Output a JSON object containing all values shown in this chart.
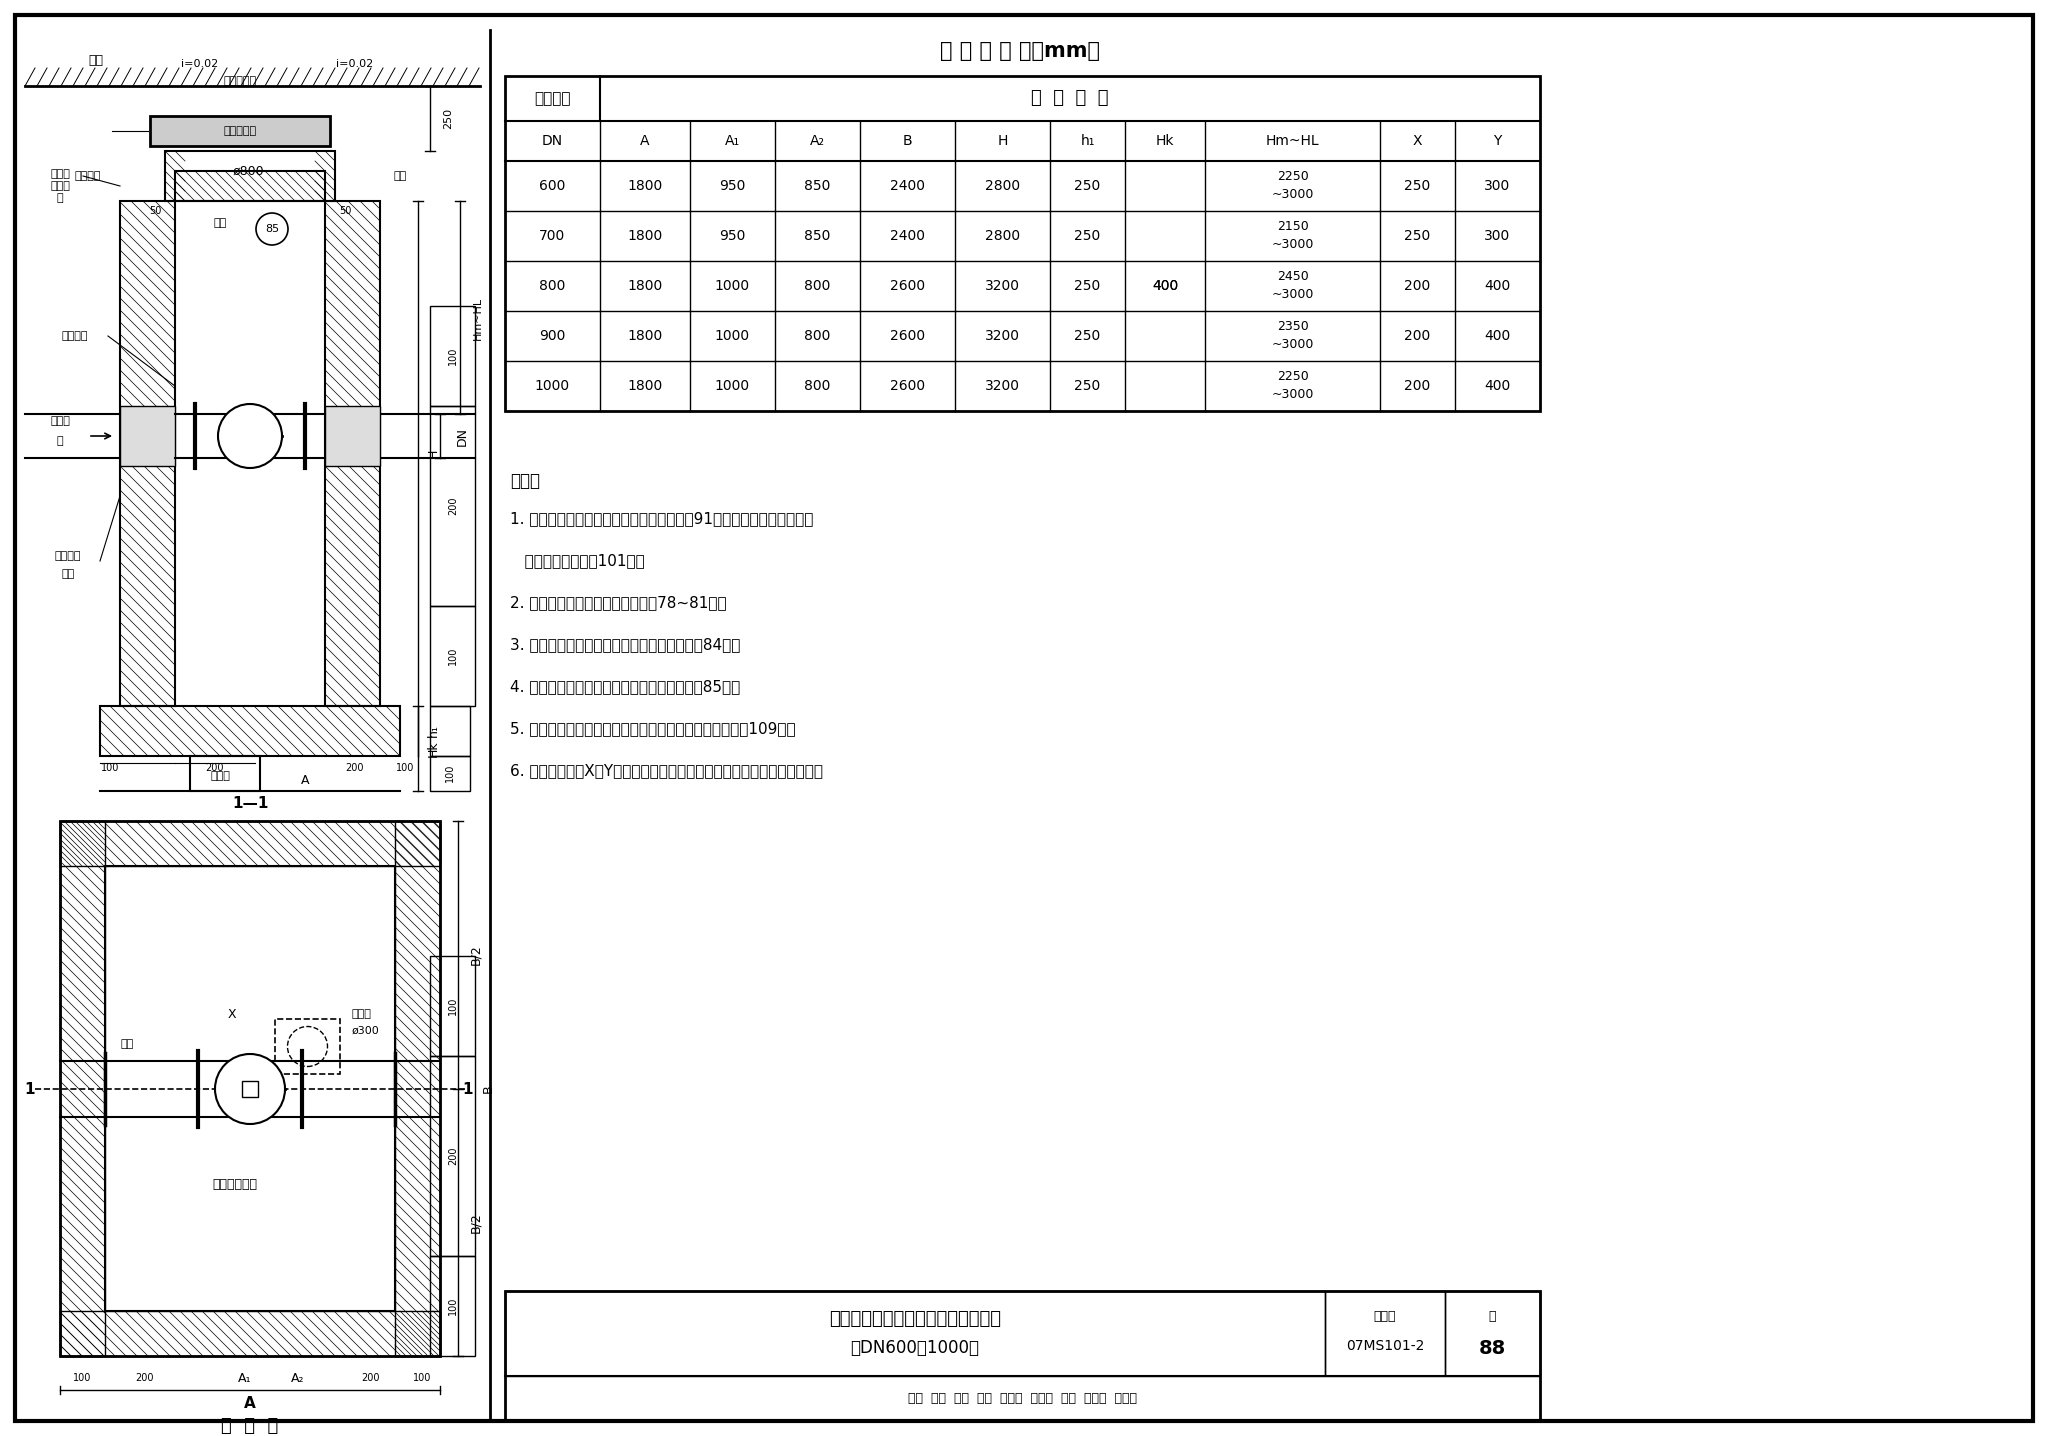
{
  "bg_color": "#ffffff",
  "border_color": "#000000",
  "title_table": "各 部 尺 寸 表（mm）",
  "table_header_row1_col1": "螺阀直径",
  "table_header_row1_col2": "各  部  尺  寸",
  "table_header_row2": [
    "DN",
    "A",
    "A₁",
    "A₂",
    "B",
    "H",
    "h₁",
    "Hk",
    "Hm~HL",
    "X",
    "Y"
  ],
  "table_data": [
    [
      "600",
      "1800",
      "950",
      "850",
      "2400",
      "2800",
      "250",
      "",
      "2250\n~3000",
      "250",
      "300"
    ],
    [
      "700",
      "1800",
      "950",
      "850",
      "2400",
      "2800",
      "250",
      "",
      "2150\n~3000",
      "250",
      "300"
    ],
    [
      "800",
      "1800",
      "1000",
      "800",
      "2600",
      "3200",
      "250",
      "400",
      "2450\n~3000",
      "200",
      "400"
    ],
    [
      "900",
      "1800",
      "1000",
      "800",
      "2600",
      "3200",
      "250",
      "",
      "2350\n~3000",
      "200",
      "400"
    ],
    [
      "1000",
      "1800",
      "1000",
      "800",
      "2600",
      "3200",
      "250",
      "",
      "2250\n~3000",
      "200",
      "400"
    ]
  ],
  "notes_title": "说明：",
  "note_lines": [
    "1. 钢筋混凝土井壁及底板配筋图见本图集第91页，钢筋混凝土盖板平面",
    "   布置图见本图集第101页。",
    "2. 钢筋混凝土预制井圈见本图集第78~81页。",
    "3. 管道穿井壁预埋防水套管尺寸表见本图集第84页。",
    "4. 集水坑、井盖及支座、踏步做法见本图集第85页。",
    "5. 钢筋混凝土矩形立式螺阀井主要材料汇总表见本图集第109页。",
    "6. 各部尺寸表中X、Y值仅供参考，施工中应根据实际操作阀位置做调整。"
  ],
  "title_box_main": "地面操作钢筋混凝土矩形立式蝶阀井",
  "title_box_sub": "（DN600～1000）",
  "title_box_label": "图集号",
  "title_box_number": "07MS101-2",
  "title_box_page_label": "页",
  "title_box_page": "88",
  "stamp_row": "审核  曹激  水淡  校对  马连魁  心远勉  设计  姚光石  姚多名"
}
